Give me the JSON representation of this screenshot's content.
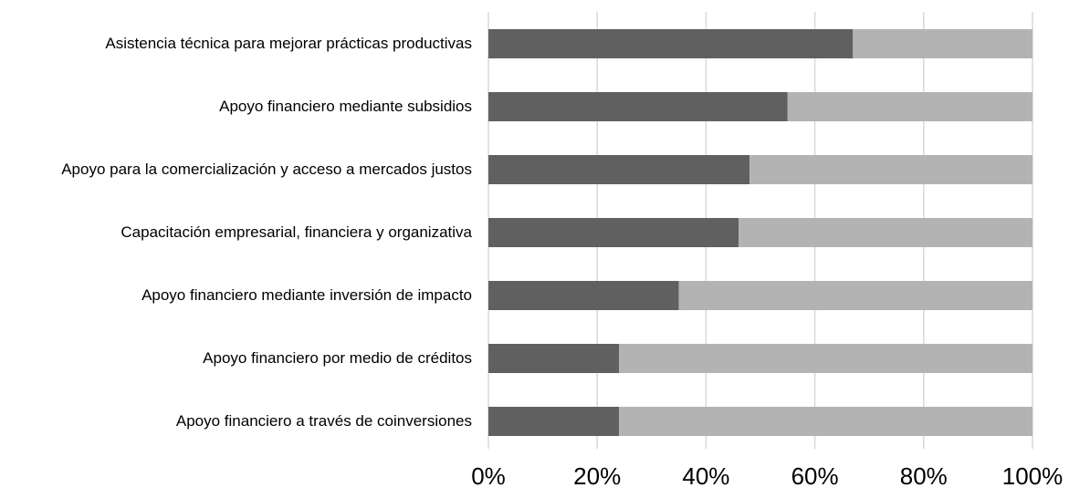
{
  "chart_data": {
    "type": "stacked_bar_horizontal",
    "categories": [
      "Asistencia técnica para mejorar prácticas productivas",
      "Apoyo financiero mediante subsidios",
      "Apoyo para la comercialización y acceso a mercados justos",
      "Capacitación empresarial, financiera y organizativa",
      "Apoyo financiero mediante inversión de impacto",
      "Apoyo financiero por medio de créditos",
      "Apoyo financiero a través de coinversiones"
    ],
    "series": [
      {
        "color": "#606060",
        "values": [
          67,
          55,
          48,
          46,
          35,
          24,
          24
        ]
      },
      {
        "color": "#b3b3b3",
        "values": [
          33,
          45,
          52,
          54,
          65,
          76,
          76
        ]
      }
    ],
    "xlim": [
      0,
      100
    ],
    "xticks": [
      {
        "value": 0,
        "label": "0%"
      },
      {
        "value": 20,
        "label": "20%"
      },
      {
        "value": 40,
        "label": "40%"
      },
      {
        "value": 60,
        "label": "60%"
      },
      {
        "value": 80,
        "label": "80%"
      },
      {
        "value": 100,
        "label": "100%"
      }
    ],
    "grid": true
  }
}
